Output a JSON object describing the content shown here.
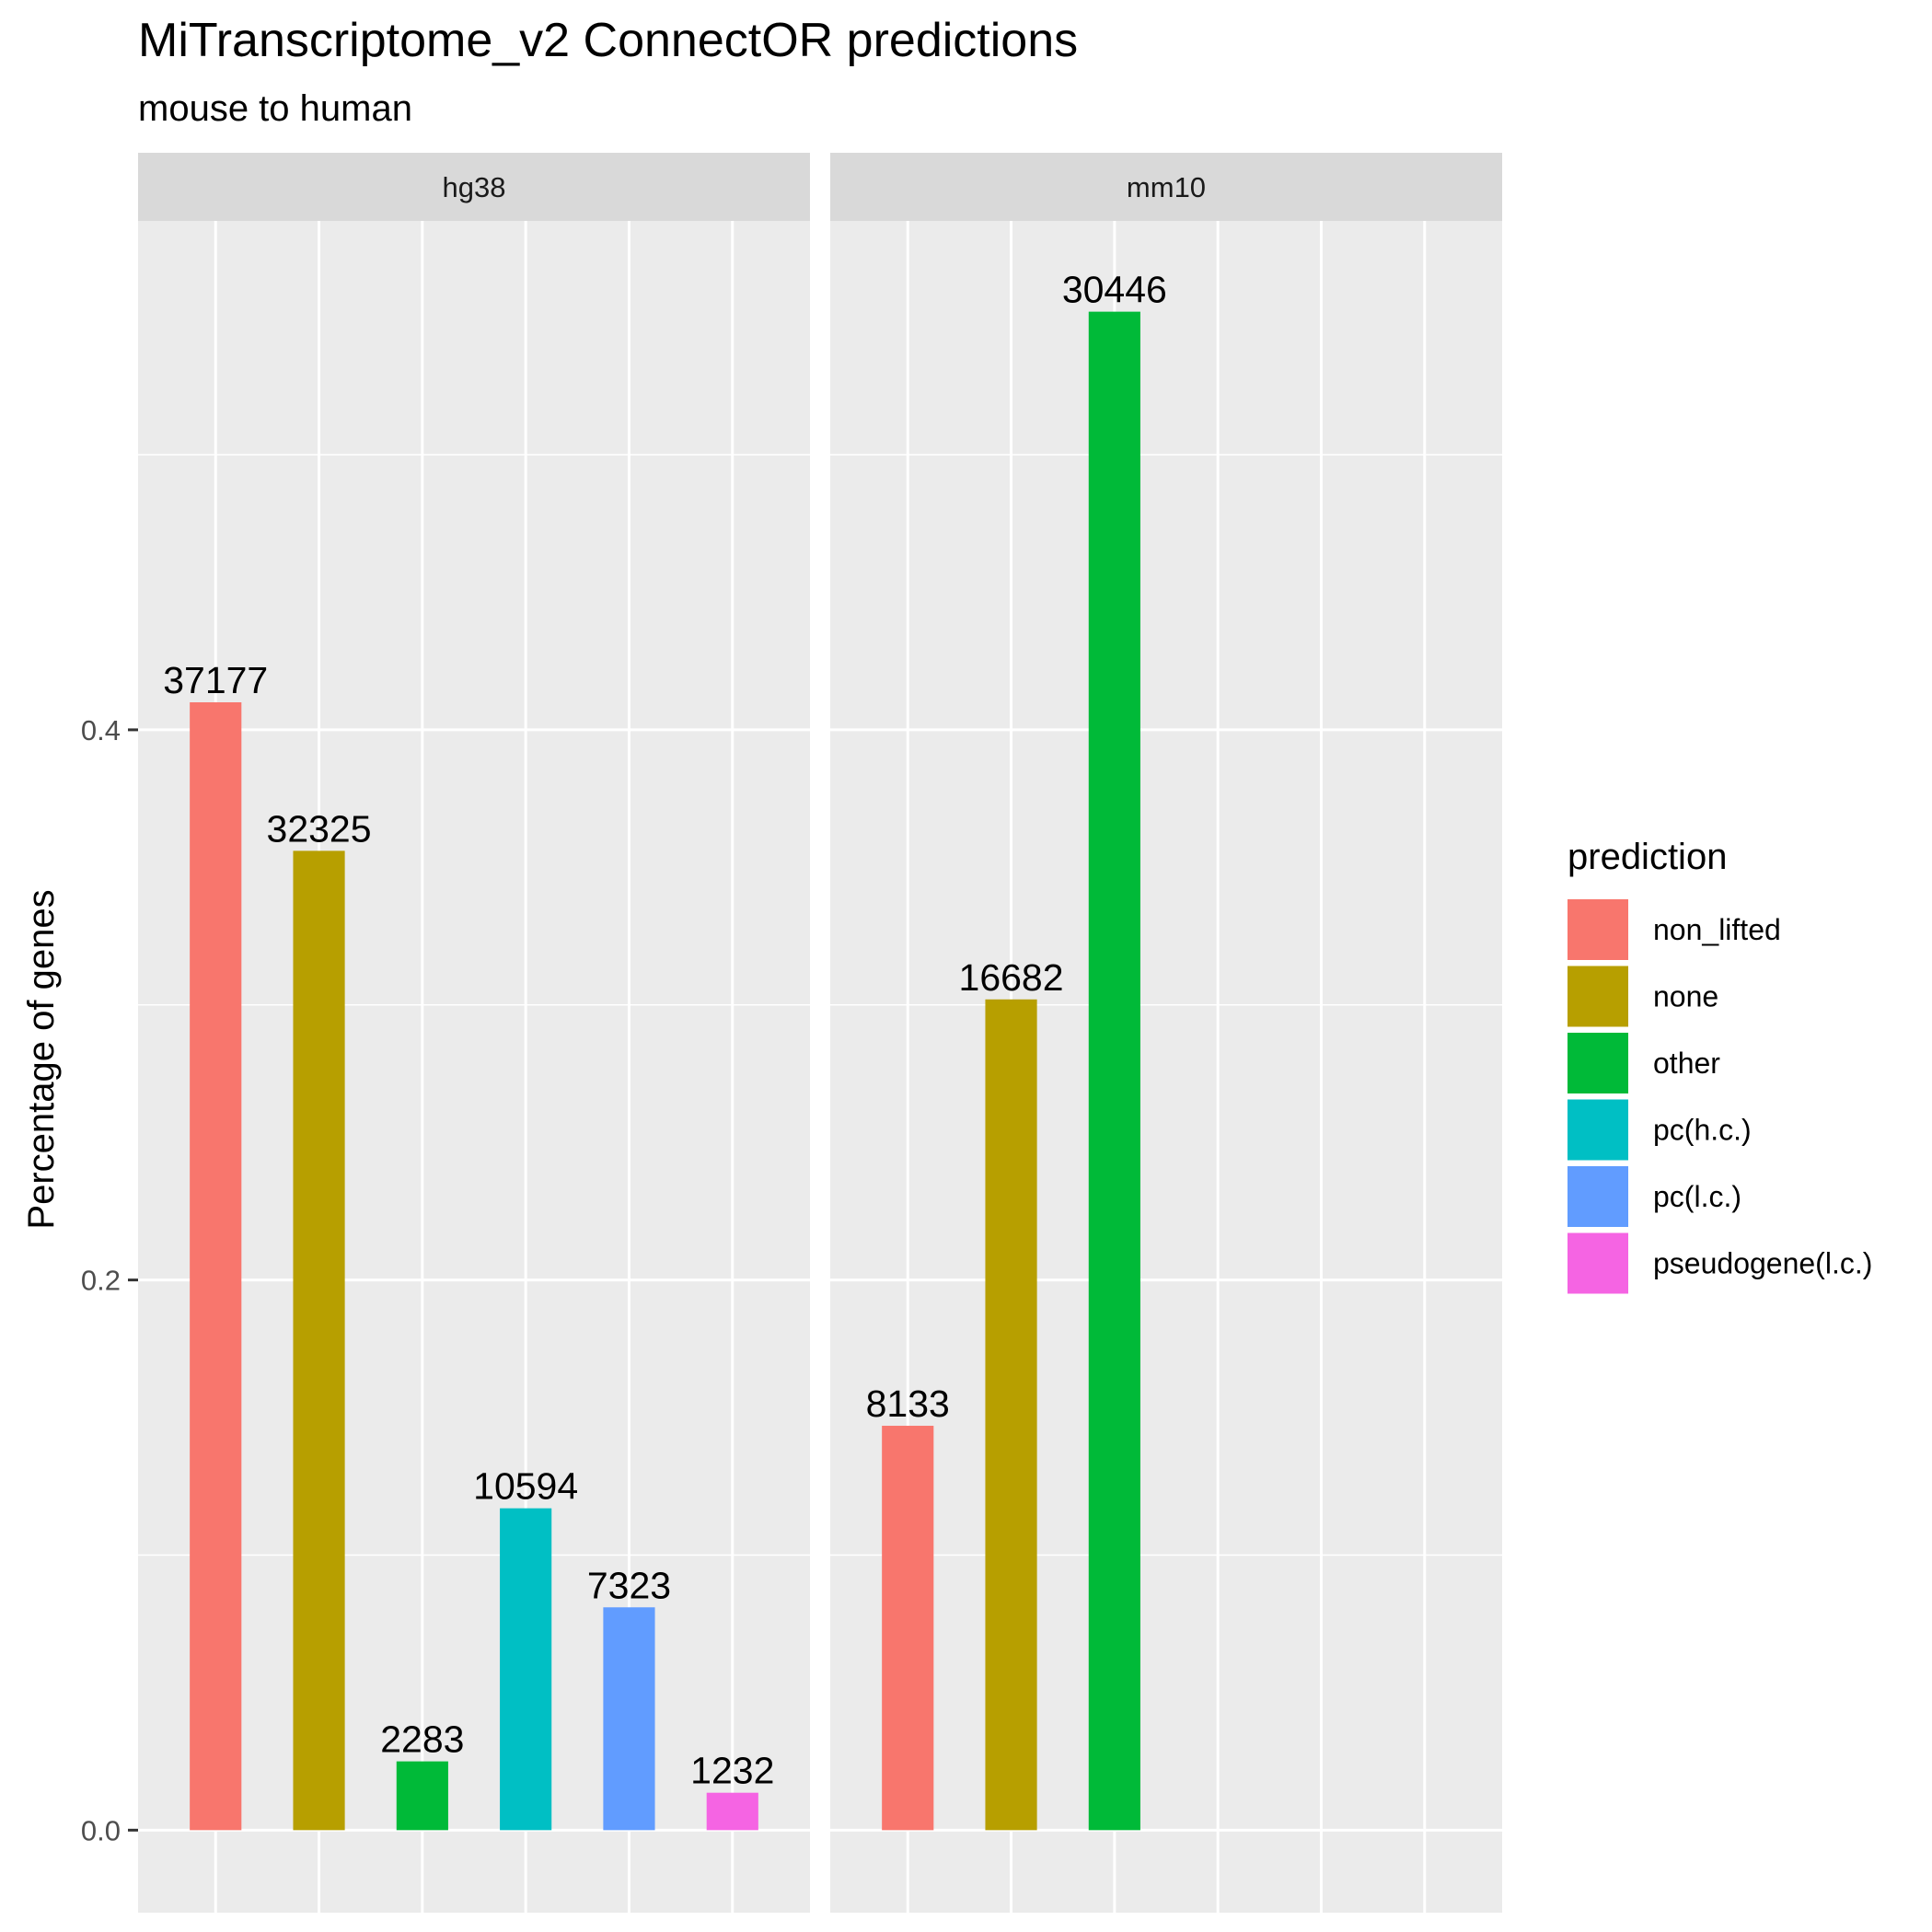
{
  "chart_data": {
    "type": "bar",
    "title": "MiTranscriptome_v2 ConnectOR predictions",
    "subtitle": "mouse to human",
    "xlabel": "",
    "ylabel": "Percentage of genes",
    "ylim": [
      -0.03,
      0.585
    ],
    "y_ticks": [
      0.0,
      0.2,
      0.4
    ],
    "y_tick_labels": [
      "0.0",
      "0.2",
      "0.4"
    ],
    "grid": true,
    "legend": {
      "title": "prediction",
      "position": "right",
      "entries": [
        {
          "label": "non_lifted",
          "color": "#F8766D"
        },
        {
          "label": "none",
          "color": "#B79F00"
        },
        {
          "label": "other",
          "color": "#00BA38"
        },
        {
          "label": "pc(h.c.)",
          "color": "#00BFC4"
        },
        {
          "label": "pc(l.c.)",
          "color": "#619CFF"
        },
        {
          "label": "pseudogene(l.c.)",
          "color": "#F564E3"
        }
      ]
    },
    "facets": [
      {
        "name": "hg38",
        "n_slots": 6,
        "bars": [
          {
            "category": "non_lifted",
            "value": 0.41,
            "label": "37177"
          },
          {
            "category": "none",
            "value": 0.356,
            "label": "32325"
          },
          {
            "category": "other",
            "value": 0.025,
            "label": "2283"
          },
          {
            "category": "pc(h.c.)",
            "value": 0.117,
            "label": "10594"
          },
          {
            "category": "pc(l.c.)",
            "value": 0.081,
            "label": "7323"
          },
          {
            "category": "pseudogene(l.c.)",
            "value": 0.0136,
            "label": "1232"
          }
        ]
      },
      {
        "name": "mm10",
        "n_slots": 6,
        "bars": [
          {
            "category": "non_lifted",
            "value": 0.147,
            "label": "8133"
          },
          {
            "category": "none",
            "value": 0.302,
            "label": "16682"
          },
          {
            "category": "other",
            "value": 0.552,
            "label": "30446"
          }
        ]
      }
    ]
  }
}
